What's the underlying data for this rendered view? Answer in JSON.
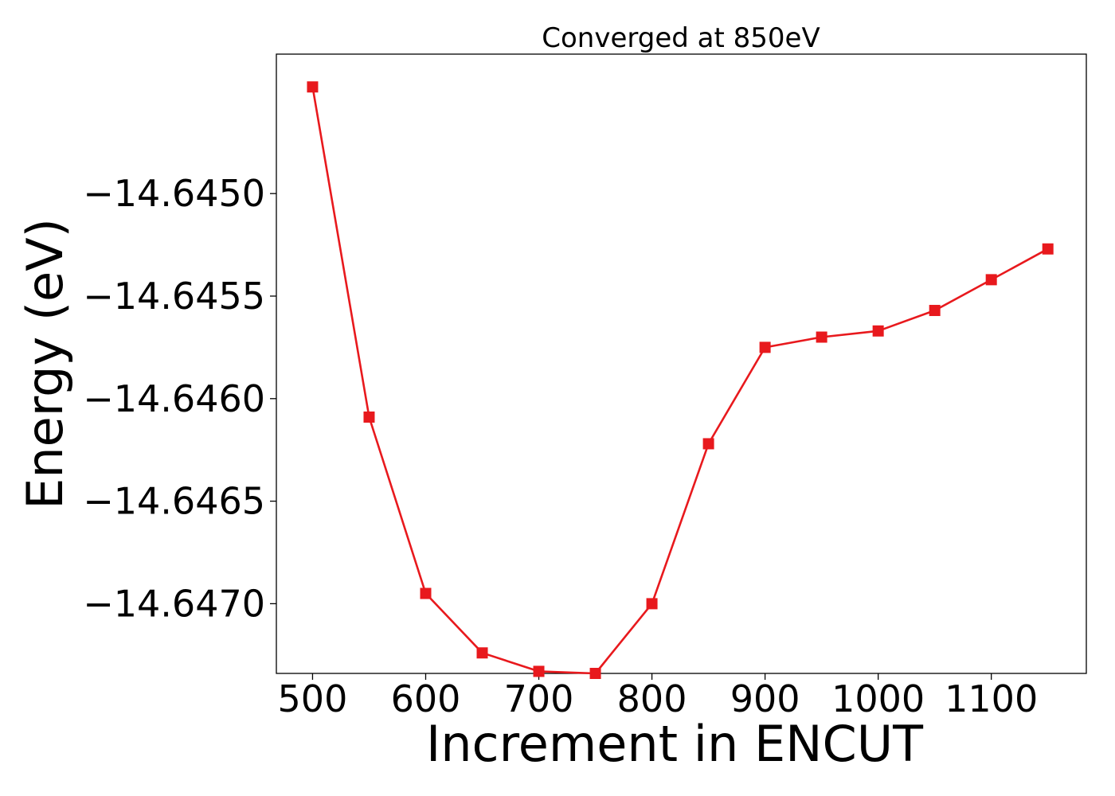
{
  "chart_data": {
    "type": "line",
    "title": "Converged at 850eV",
    "xlabel": "Increment in ENCUT",
    "ylabel": "Energy (eV)",
    "xlim": [
      468,
      1184
    ],
    "ylim": [
      -14.64734,
      -14.64432
    ],
    "xticks": [
      500,
      600,
      700,
      800,
      900,
      1000,
      1100
    ],
    "xtick_labels": [
      "500",
      "600",
      "700",
      "800",
      "900",
      "1000",
      "1100"
    ],
    "yticks": [
      -14.645,
      -14.6455,
      -14.646,
      -14.6465,
      -14.647
    ],
    "ytick_labels": [
      "−14.6450",
      "−14.6455",
      "−14.6460",
      "−14.6465",
      "−14.6470"
    ],
    "grid": false,
    "series": [
      {
        "color": "#e8191d",
        "marker": "square",
        "x": [
          500,
          550,
          600,
          650,
          700,
          750,
          800,
          850,
          900,
          950,
          1000,
          1050,
          1100,
          1150
        ],
        "y": [
          -14.64448,
          -14.64609,
          -14.64695,
          -14.64724,
          -14.64733,
          -14.64734,
          -14.647,
          -14.64622,
          -14.64575,
          -14.6457,
          -14.64567,
          -14.64557,
          -14.64542,
          -14.64527
        ]
      }
    ]
  }
}
